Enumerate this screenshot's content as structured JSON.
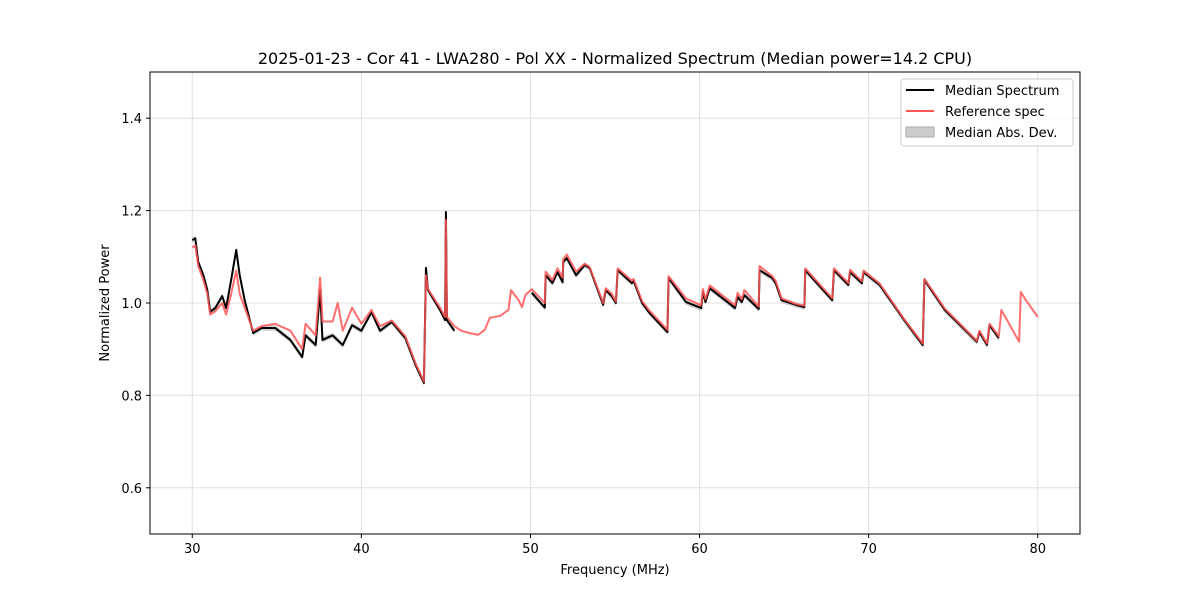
{
  "chart_data": {
    "type": "line",
    "title": "2025-01-23 - Cor 41 - LWA280 - Pol XX - Normalized Spectrum (Median power=14.2 CPU)",
    "xlabel": "Frequency (MHz)",
    "ylabel": "Normalized Power",
    "xlim": [
      27.5,
      82.5
    ],
    "ylim": [
      0.5,
      1.5
    ],
    "xticks": [
      30,
      40,
      50,
      60,
      70,
      80
    ],
    "yticks": [
      0.6,
      0.8,
      1.0,
      1.2,
      1.4
    ],
    "ytick_labels": [
      "0.6",
      "0.8",
      "1.0",
      "1.2",
      "1.4"
    ],
    "grid": true,
    "legend_position": "top-right",
    "legend": [
      "Median Spectrum",
      "Reference spec",
      "Median Abs. Dev."
    ],
    "colors": {
      "median": "#000000",
      "reference": "#ff5555",
      "mad": "#bbbbbb"
    },
    "mad_halfwidth": 0.006,
    "series": [
      {
        "name": "Median Spectrum",
        "segments": [
          [
            [
              30.0,
              1.136
            ],
            [
              30.18,
              1.14
            ],
            [
              30.35,
              1.089
            ],
            [
              30.65,
              1.061
            ],
            [
              30.89,
              1.028
            ],
            [
              31.06,
              0.981
            ],
            [
              31.36,
              0.989
            ],
            [
              31.77,
              1.015
            ],
            [
              32.0,
              0.989
            ],
            [
              32.3,
              1.05
            ],
            [
              32.6,
              1.115
            ],
            [
              32.8,
              1.061
            ],
            [
              33.1,
              1.006
            ],
            [
              33.6,
              0.935
            ],
            [
              34.1,
              0.946
            ],
            [
              34.9,
              0.946
            ],
            [
              35.8,
              0.92
            ],
            [
              36.5,
              0.883
            ],
            [
              36.7,
              0.93
            ],
            [
              37.3,
              0.909
            ],
            [
              37.56,
              1.028
            ],
            [
              37.7,
              0.92
            ],
            [
              38.3,
              0.93
            ],
            [
              38.9,
              0.909
            ],
            [
              39.45,
              0.952
            ],
            [
              40.0,
              0.94
            ],
            [
              40.6,
              0.98
            ],
            [
              41.1,
              0.94
            ],
            [
              41.8,
              0.959
            ],
            [
              42.6,
              0.924
            ],
            [
              43.2,
              0.866
            ],
            [
              43.7,
              0.827
            ],
            [
              43.82,
              1.076
            ],
            [
              43.94,
              1.028
            ],
            [
              44.65,
              0.985
            ],
            [
              44.95,
              0.963
            ],
            [
              45.0,
              1.197
            ],
            [
              45.06,
              0.963
            ],
            [
              45.5,
              0.94
            ]
          ],
          [
            [
              50.08,
              1.022
            ],
            [
              50.85,
              0.99
            ],
            [
              50.9,
              1.06
            ],
            [
              51.3,
              1.043
            ],
            [
              51.6,
              1.067
            ],
            [
              51.9,
              1.045
            ],
            [
              51.94,
              1.089
            ],
            [
              52.15,
              1.097
            ],
            [
              52.7,
              1.06
            ],
            [
              53.2,
              1.082
            ],
            [
              53.5,
              1.076
            ],
            [
              54.3,
              0.996
            ],
            [
              54.45,
              1.028
            ],
            [
              54.8,
              1.015
            ],
            [
              55.05,
              1.0
            ],
            [
              55.16,
              1.071
            ],
            [
              56.0,
              1.043
            ],
            [
              56.1,
              1.048
            ],
            [
              56.6,
              1.0
            ],
            [
              57.05,
              0.978
            ],
            [
              58.1,
              0.937
            ],
            [
              58.17,
              1.054
            ],
            [
              59.2,
              1.002
            ],
            [
              60.1,
              0.989
            ],
            [
              60.2,
              1.024
            ],
            [
              60.35,
              1.002
            ],
            [
              60.6,
              1.032
            ],
            [
              62.1,
              0.989
            ],
            [
              62.25,
              1.013
            ],
            [
              62.5,
              1.002
            ],
            [
              62.65,
              1.017
            ],
            [
              63.5,
              0.987
            ],
            [
              63.55,
              1.071
            ],
            [
              64.3,
              1.054
            ],
            [
              64.5,
              1.043
            ],
            [
              64.85,
              1.006
            ],
            [
              65.7,
              0.996
            ],
            [
              66.2,
              0.991
            ],
            [
              66.25,
              1.071
            ],
            [
              67.85,
              1.006
            ],
            [
              67.95,
              1.071
            ],
            [
              68.8,
              1.039
            ],
            [
              68.9,
              1.067
            ],
            [
              69.6,
              1.043
            ],
            [
              69.7,
              1.067
            ],
            [
              70.65,
              1.039
            ],
            [
              72.1,
              0.963
            ],
            [
              73.2,
              0.909
            ],
            [
              73.3,
              1.05
            ],
            [
              74.5,
              0.985
            ],
            [
              76.4,
              0.916
            ],
            [
              76.55,
              0.937
            ],
            [
              77.0,
              0.909
            ],
            [
              77.15,
              0.952
            ],
            [
              77.7,
              0.924
            ]
          ]
        ]
      },
      {
        "name": "Reference spec",
        "segments": [
          [
            [
              30.0,
              1.12
            ],
            [
              30.18,
              1.125
            ],
            [
              30.35,
              1.08
            ],
            [
              30.65,
              1.05
            ],
            [
              30.89,
              1.02
            ],
            [
              31.06,
              0.975
            ],
            [
              31.36,
              0.982
            ],
            [
              31.77,
              1.0
            ],
            [
              32.0,
              0.975
            ],
            [
              32.3,
              1.02
            ],
            [
              32.6,
              1.07
            ],
            [
              32.8,
              1.02
            ],
            [
              33.1,
              0.99
            ],
            [
              33.6,
              0.94
            ],
            [
              34.1,
              0.95
            ],
            [
              34.9,
              0.955
            ],
            [
              35.8,
              0.94
            ],
            [
              36.5,
              0.9
            ],
            [
              36.7,
              0.955
            ],
            [
              37.3,
              0.93
            ],
            [
              37.56,
              1.055
            ],
            [
              37.7,
              0.96
            ],
            [
              38.3,
              0.96
            ],
            [
              38.6,
              1.0
            ],
            [
              38.9,
              0.94
            ],
            [
              39.45,
              0.99
            ],
            [
              40.0,
              0.955
            ],
            [
              40.6,
              0.985
            ],
            [
              41.1,
              0.95
            ],
            [
              41.8,
              0.962
            ],
            [
              42.6,
              0.928
            ],
            [
              43.2,
              0.87
            ],
            [
              43.7,
              0.83
            ],
            [
              43.82,
              1.06
            ],
            [
              43.94,
              1.03
            ],
            [
              44.65,
              0.99
            ],
            [
              44.95,
              0.97
            ],
            [
              45.0,
              1.18
            ],
            [
              45.06,
              0.97
            ],
            [
              45.5,
              0.95
            ],
            [
              45.9,
              0.94
            ],
            [
              46.4,
              0.935
            ],
            [
              46.9,
              0.931
            ],
            [
              47.3,
              0.942
            ],
            [
              47.6,
              0.968
            ],
            [
              48.2,
              0.972
            ],
            [
              48.7,
              0.985
            ],
            [
              48.85,
              1.028
            ],
            [
              49.3,
              1.006
            ],
            [
              49.5,
              0.991
            ],
            [
              49.7,
              1.017
            ],
            [
              50.08,
              1.03
            ],
            [
              50.85,
              1.0
            ],
            [
              50.9,
              1.068
            ],
            [
              51.3,
              1.05
            ],
            [
              51.6,
              1.075
            ],
            [
              51.9,
              1.055
            ],
            [
              51.94,
              1.095
            ],
            [
              52.15,
              1.105
            ],
            [
              52.7,
              1.068
            ],
            [
              53.2,
              1.085
            ],
            [
              53.5,
              1.078
            ],
            [
              54.3,
              1.0
            ],
            [
              54.45,
              1.032
            ],
            [
              54.8,
              1.02
            ],
            [
              55.05,
              1.003
            ],
            [
              55.16,
              1.075
            ],
            [
              56.0,
              1.048
            ],
            [
              56.1,
              1.052
            ],
            [
              56.6,
              1.004
            ],
            [
              57.05,
              0.983
            ],
            [
              58.1,
              0.942
            ],
            [
              58.17,
              1.058
            ],
            [
              59.2,
              1.01
            ],
            [
              60.1,
              0.995
            ],
            [
              60.2,
              1.03
            ],
            [
              60.35,
              1.008
            ],
            [
              60.6,
              1.038
            ],
            [
              62.1,
              0.995
            ],
            [
              62.25,
              1.022
            ],
            [
              62.5,
              1.008
            ],
            [
              62.65,
              1.028
            ],
            [
              63.5,
              0.992
            ],
            [
              63.55,
              1.08
            ],
            [
              64.3,
              1.058
            ],
            [
              64.5,
              1.048
            ],
            [
              64.85,
              1.01
            ],
            [
              65.7,
              0.998
            ],
            [
              66.2,
              0.994
            ],
            [
              66.25,
              1.075
            ],
            [
              67.85,
              1.01
            ],
            [
              67.95,
              1.075
            ],
            [
              68.8,
              1.043
            ],
            [
              68.9,
              1.072
            ],
            [
              69.6,
              1.047
            ],
            [
              69.7,
              1.07
            ],
            [
              70.65,
              1.042
            ],
            [
              72.1,
              0.965
            ],
            [
              73.2,
              0.912
            ],
            [
              73.3,
              1.052
            ],
            [
              74.5,
              0.988
            ],
            [
              76.4,
              0.918
            ],
            [
              76.55,
              0.94
            ],
            [
              77.0,
              0.912
            ],
            [
              77.15,
              0.955
            ],
            [
              77.7,
              0.928
            ],
            [
              77.85,
              0.985
            ],
            [
              78.9,
              0.916
            ],
            [
              79.0,
              1.024
            ],
            [
              79.3,
              1.006
            ],
            [
              80.0,
              0.97
            ]
          ]
        ]
      }
    ]
  }
}
